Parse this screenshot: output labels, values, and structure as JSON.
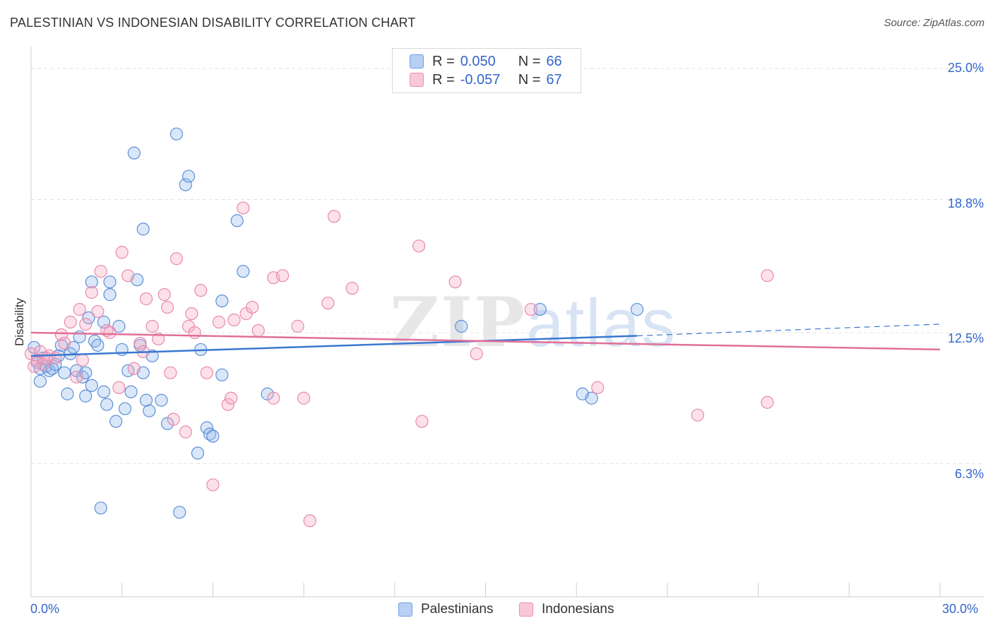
{
  "header": {
    "title": "PALESTINIAN VS INDONESIAN DISABILITY CORRELATION CHART",
    "source": "Source: ZipAtlas.com"
  },
  "watermark": {
    "zip": "ZIP",
    "atlas": "atlas"
  },
  "legend_top": [
    {
      "r_label": "R =",
      "r_value": "0.050",
      "n_label": "N =",
      "n_value": "66",
      "fill": "#b8d0f4",
      "stroke": "#6f9ee0"
    },
    {
      "r_label": "R =",
      "r_value": "-0.057",
      "n_label": "N =",
      "n_value": "67",
      "fill": "#f9c8d8",
      "stroke": "#ec8fad"
    }
  ],
  "legend_bottom": [
    {
      "label": "Palestinians",
      "fill": "#b8d0f4",
      "stroke": "#6f9ee0"
    },
    {
      "label": "Indonesians",
      "fill": "#f9c8d8",
      "stroke": "#ec8fad"
    }
  ],
  "axis_labels": {
    "x_min": "0.0%",
    "x_max": "30.0%",
    "y_ticks": [
      "25.0%",
      "18.8%",
      "12.5%",
      "6.3%"
    ]
  },
  "chart_data": {
    "type": "scatter",
    "title": "PALESTINIAN VS INDONESIAN DISABILITY CORRELATION CHART",
    "xlabel": "",
    "ylabel": "Disability",
    "xlim": [
      0,
      30
    ],
    "ylim": [
      0,
      25.6
    ],
    "y_gridlines": [
      25.0,
      18.8,
      12.5,
      6.3
    ],
    "grid": true,
    "legend_position": "top-center",
    "colors": {
      "Palestinians": "#3a78d0",
      "Indonesians": "#e07099"
    },
    "series": [
      {
        "name": "Palestinians",
        "fill": "rgba(150,185,235,0.35)",
        "stroke": "#5e8fd8",
        "trend": {
          "x": [
            0,
            20,
            30
          ],
          "y": [
            11.4,
            12.35,
            12.9
          ],
          "solid_until": 20
        },
        "points": [
          [
            0.1,
            11.8
          ],
          [
            0.2,
            11.1
          ],
          [
            0.3,
            10.8
          ],
          [
            0.3,
            10.2
          ],
          [
            0.4,
            11.3
          ],
          [
            0.5,
            10.9
          ],
          [
            0.6,
            10.7
          ],
          [
            0.7,
            10.8
          ],
          [
            0.8,
            11.0
          ],
          [
            0.9,
            11.4
          ],
          [
            1.0,
            11.9
          ],
          [
            1.1,
            10.6
          ],
          [
            1.2,
            9.6
          ],
          [
            1.3,
            11.5
          ],
          [
            1.4,
            11.8
          ],
          [
            1.5,
            10.7
          ],
          [
            1.6,
            12.3
          ],
          [
            1.7,
            10.4
          ],
          [
            1.8,
            10.6
          ],
          [
            1.8,
            9.5
          ],
          [
            1.9,
            13.2
          ],
          [
            2.0,
            10.0
          ],
          [
            2.0,
            14.9
          ],
          [
            2.1,
            12.1
          ],
          [
            2.2,
            11.9
          ],
          [
            2.4,
            9.7
          ],
          [
            2.4,
            13.0
          ],
          [
            2.5,
            9.1
          ],
          [
            2.6,
            14.9
          ],
          [
            2.6,
            14.3
          ],
          [
            2.8,
            8.3
          ],
          [
            2.9,
            12.8
          ],
          [
            3.0,
            11.7
          ],
          [
            3.1,
            8.9
          ],
          [
            3.2,
            10.7
          ],
          [
            3.3,
            9.7
          ],
          [
            3.4,
            21.0
          ],
          [
            3.5,
            15.0
          ],
          [
            3.6,
            11.9
          ],
          [
            3.7,
            10.6
          ],
          [
            3.7,
            17.4
          ],
          [
            3.8,
            9.3
          ],
          [
            3.9,
            8.8
          ],
          [
            4.0,
            11.4
          ],
          [
            4.3,
            9.3
          ],
          [
            4.5,
            8.2
          ],
          [
            4.8,
            21.9
          ],
          [
            4.9,
            4.0
          ],
          [
            5.1,
            19.5
          ],
          [
            5.2,
            19.9
          ],
          [
            5.5,
            6.8
          ],
          [
            5.6,
            11.7
          ],
          [
            5.8,
            8.0
          ],
          [
            5.9,
            7.7
          ],
          [
            6.0,
            7.6
          ],
          [
            6.3,
            10.5
          ],
          [
            6.3,
            14.0
          ],
          [
            6.8,
            17.8
          ],
          [
            7.0,
            15.4
          ],
          [
            7.8,
            9.6
          ],
          [
            2.3,
            4.2
          ],
          [
            14.2,
            12.8
          ],
          [
            18.2,
            9.6
          ],
          [
            18.5,
            9.4
          ],
          [
            16.8,
            13.6
          ],
          [
            20.0,
            13.6
          ]
        ]
      },
      {
        "name": "Indonesians",
        "fill": "rgba(245,170,195,0.35)",
        "stroke": "#e88aab",
        "trend": {
          "x": [
            0,
            30
          ],
          "y": [
            12.5,
            11.7
          ]
        },
        "points": [
          [
            0.0,
            11.5
          ],
          [
            0.2,
            11.2
          ],
          [
            0.3,
            11.6
          ],
          [
            0.4,
            11.0
          ],
          [
            0.6,
            11.4
          ],
          [
            0.8,
            11.3
          ],
          [
            1.0,
            12.4
          ],
          [
            1.1,
            12.0
          ],
          [
            1.3,
            13.0
          ],
          [
            1.5,
            10.4
          ],
          [
            1.6,
            13.6
          ],
          [
            1.7,
            11.2
          ],
          [
            1.8,
            12.9
          ],
          [
            2.0,
            14.4
          ],
          [
            2.2,
            13.5
          ],
          [
            2.3,
            15.4
          ],
          [
            2.5,
            12.6
          ],
          [
            2.6,
            12.5
          ],
          [
            2.9,
            9.9
          ],
          [
            3.0,
            16.3
          ],
          [
            3.2,
            15.2
          ],
          [
            3.4,
            10.8
          ],
          [
            3.6,
            12.0
          ],
          [
            3.7,
            11.6
          ],
          [
            3.8,
            14.1
          ],
          [
            4.0,
            12.8
          ],
          [
            4.2,
            12.2
          ],
          [
            4.4,
            14.3
          ],
          [
            4.5,
            13.7
          ],
          [
            4.6,
            10.6
          ],
          [
            4.7,
            8.4
          ],
          [
            4.8,
            16.0
          ],
          [
            5.1,
            7.8
          ],
          [
            5.2,
            12.8
          ],
          [
            5.3,
            13.4
          ],
          [
            5.4,
            12.5
          ],
          [
            5.6,
            14.5
          ],
          [
            5.8,
            10.6
          ],
          [
            6.0,
            5.3
          ],
          [
            6.2,
            13.0
          ],
          [
            6.5,
            9.1
          ],
          [
            6.6,
            9.4
          ],
          [
            6.7,
            13.1
          ],
          [
            7.0,
            18.4
          ],
          [
            7.1,
            13.4
          ],
          [
            7.3,
            13.7
          ],
          [
            7.5,
            12.6
          ],
          [
            8.0,
            15.1
          ],
          [
            8.0,
            9.4
          ],
          [
            8.3,
            15.2
          ],
          [
            8.8,
            12.8
          ],
          [
            9.0,
            9.4
          ],
          [
            9.2,
            3.6
          ],
          [
            9.8,
            13.9
          ],
          [
            10.0,
            18.0
          ],
          [
            10.6,
            14.6
          ],
          [
            12.8,
            16.6
          ],
          [
            12.9,
            8.3
          ],
          [
            14.0,
            14.9
          ],
          [
            14.7,
            11.5
          ],
          [
            16.5,
            13.6
          ],
          [
            18.7,
            9.9
          ],
          [
            22.0,
            8.6
          ],
          [
            24.3,
            15.2
          ],
          [
            24.3,
            9.2
          ],
          [
            0.1,
            10.9
          ],
          [
            0.5,
            11.3
          ]
        ]
      }
    ]
  }
}
